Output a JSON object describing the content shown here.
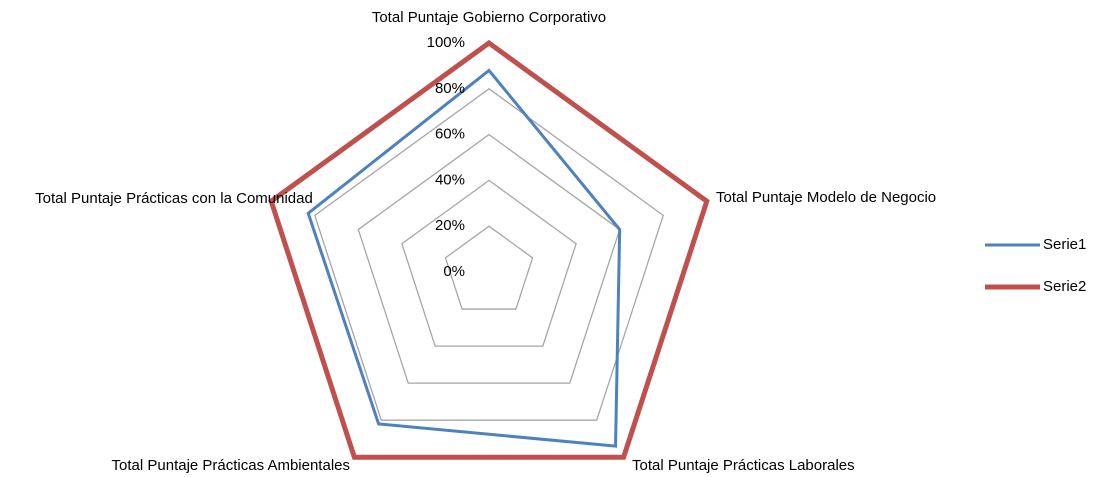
{
  "chart_data": {
    "type": "radar",
    "categories": [
      "Total Puntaje Gobierno Corporativo",
      "Total Puntaje Modelo de Negocio",
      "Total Puntaje Prácticas Laborales",
      "Total Puntaje Prácticas Ambientales",
      "Total Puntaje Prácticas con la Comunidad"
    ],
    "series": [
      {
        "name": "Serie1",
        "color": "#4f81bd",
        "values": [
          88,
          60,
          94,
          82,
          83
        ]
      },
      {
        "name": "Serie2",
        "color": "#c0504d",
        "values": [
          100,
          100,
          100,
          100,
          100
        ]
      }
    ],
    "ylim": [
      0,
      100
    ],
    "yticks": [
      {
        "value": 0,
        "label": "0%"
      },
      {
        "value": 20,
        "label": "20%"
      },
      {
        "value": 40,
        "label": "40%"
      },
      {
        "value": 60,
        "label": "60%"
      },
      {
        "value": 80,
        "label": "80%"
      },
      {
        "value": 100,
        "label": "100%"
      }
    ],
    "grid": true,
    "legend": "right"
  }
}
